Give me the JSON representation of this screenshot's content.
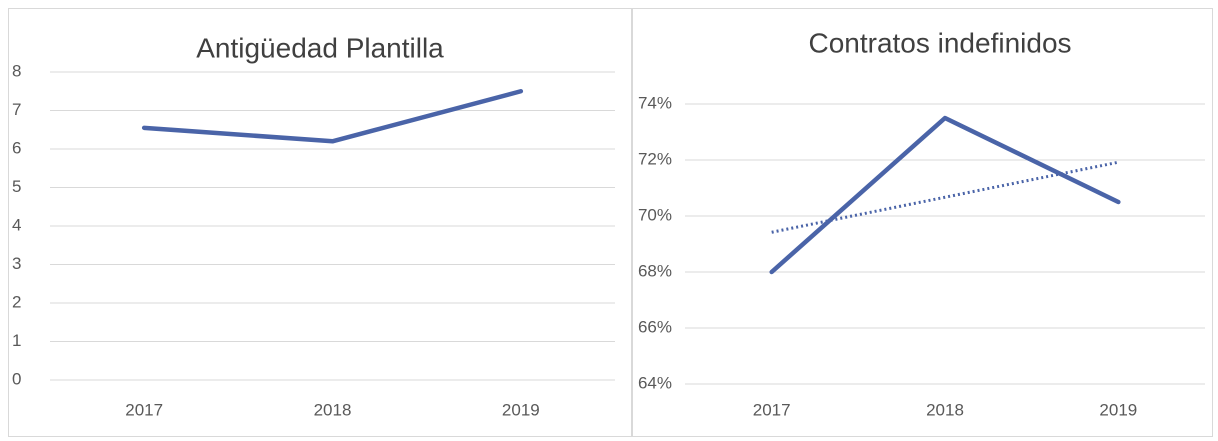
{
  "chart_data": [
    {
      "type": "line",
      "title": "Antigüedad Plantilla",
      "categories": [
        "2017",
        "2018",
        "2019"
      ],
      "series": [
        {
          "color": "#4a64a8",
          "style": "solid",
          "values": [
            6.55,
            6.2,
            7.5
          ]
        }
      ],
      "ylim": [
        0,
        8
      ],
      "yticks": [
        0,
        1,
        2,
        3,
        4,
        5,
        6,
        7,
        8
      ],
      "grid": true
    },
    {
      "type": "line",
      "title": "Contratos indefinidos",
      "categories": [
        "2017",
        "2018",
        "2019"
      ],
      "series": [
        {
          "color": "#4a64a8",
          "style": "solid",
          "values": [
            68,
            73.5,
            70.5
          ]
        },
        {
          "color": "#4a64a8",
          "style": "dotted",
          "values": [
            69.42,
            70.67,
            71.92
          ]
        }
      ],
      "ylim": [
        64,
        74
      ],
      "yticks": [
        {
          "value": 64,
          "label": "64%"
        },
        {
          "value": 66,
          "label": "66%"
        },
        {
          "value": 68,
          "label": "68%"
        },
        {
          "value": 70,
          "label": "70%"
        },
        {
          "value": 72,
          "label": "72%"
        },
        {
          "value": 74,
          "label": "74%"
        }
      ],
      "grid": true
    }
  ]
}
